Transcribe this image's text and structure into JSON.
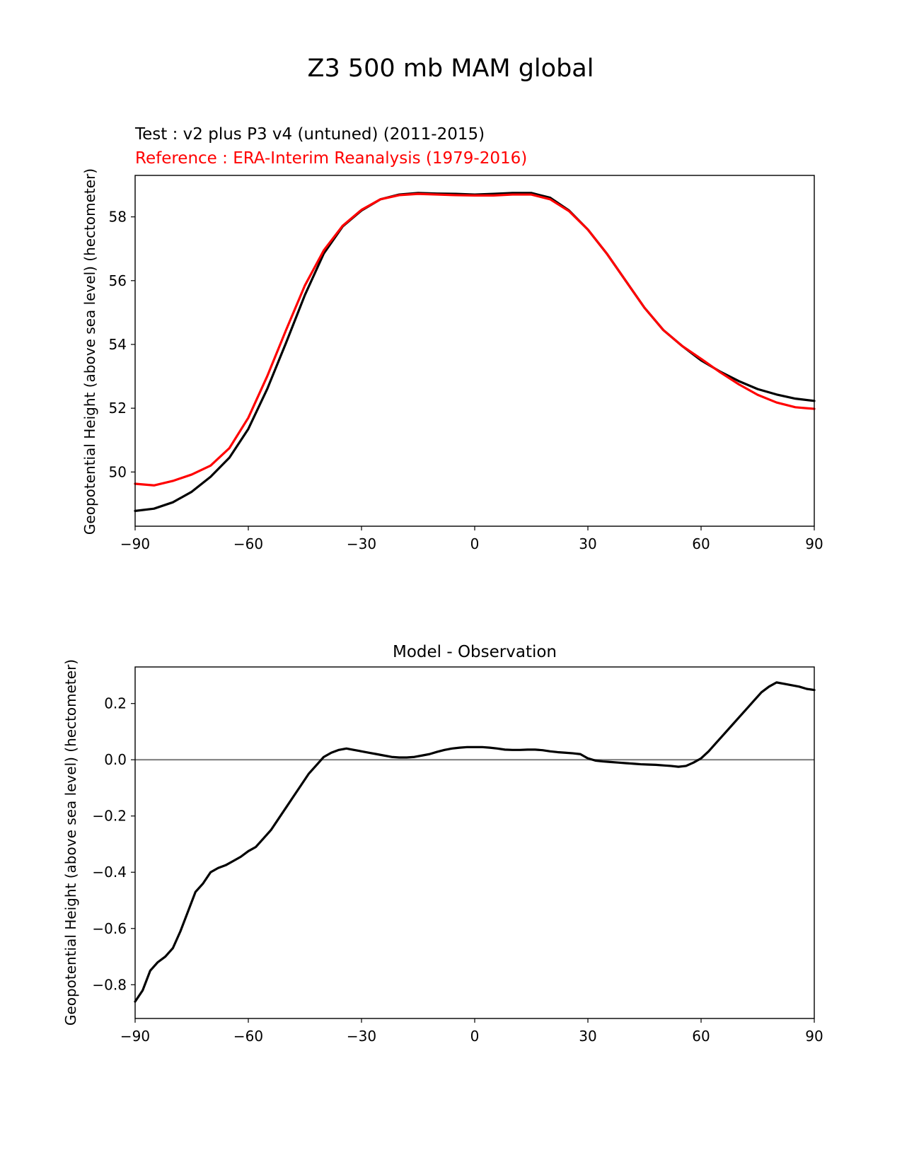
{
  "figure": {
    "suptitle": "Z3 500 mb MAM global"
  },
  "chart_data": [
    {
      "type": "line",
      "test_label": "Test : v2 plus P3 v4 (untuned) (2011-2015)",
      "reference_label": "Reference : ERA-Interim Reanalysis (1979-2016)",
      "xlabel": "",
      "ylabel": "Geopotential Height (above sea level) (hectometer)",
      "xlim": [
        -90,
        90
      ],
      "ylim": [
        48.3,
        59.3
      ],
      "xticks": [
        -90,
        -60,
        -30,
        0,
        30,
        60,
        90
      ],
      "xtick_labels": [
        "−90",
        "−60",
        "−30",
        "0",
        "30",
        "60",
        "90"
      ],
      "yticks": [
        50,
        52,
        54,
        56,
        58
      ],
      "ytick_labels": [
        "50",
        "52",
        "54",
        "56",
        "58"
      ],
      "x": [
        -90,
        -85,
        -80,
        -75,
        -70,
        -65,
        -60,
        -55,
        -50,
        -45,
        -40,
        -35,
        -30,
        -25,
        -20,
        -15,
        -10,
        -5,
        0,
        5,
        10,
        15,
        20,
        25,
        30,
        35,
        40,
        45,
        50,
        55,
        60,
        65,
        70,
        75,
        80,
        85,
        90
      ],
      "series": [
        {
          "name": "Test",
          "color": "#000000",
          "values": [
            48.78,
            48.85,
            49.05,
            49.38,
            49.85,
            50.45,
            51.35,
            52.6,
            54.05,
            55.55,
            56.85,
            57.7,
            58.2,
            58.55,
            58.7,
            58.75,
            58.73,
            58.72,
            58.7,
            58.72,
            58.75,
            58.75,
            58.6,
            58.2,
            57.6,
            56.85,
            56.0,
            55.15,
            54.45,
            53.95,
            53.5,
            53.15,
            52.85,
            52.6,
            52.43,
            52.3,
            52.23
          ]
        },
        {
          "name": "Reference",
          "color": "#ff0000",
          "values": [
            49.63,
            49.58,
            49.72,
            49.92,
            50.2,
            50.75,
            51.7,
            53.0,
            54.45,
            55.85,
            56.95,
            57.72,
            58.22,
            58.55,
            58.68,
            58.72,
            58.7,
            58.68,
            58.67,
            58.67,
            58.7,
            58.7,
            58.55,
            58.18,
            57.6,
            56.85,
            56.0,
            55.15,
            54.45,
            53.95,
            53.55,
            53.13,
            52.75,
            52.42,
            52.18,
            52.03,
            51.98
          ]
        }
      ]
    },
    {
      "type": "line",
      "title": "Model - Observation",
      "xlabel": "",
      "ylabel": "Geopotential Height (above sea level) (hectometer)",
      "xlim": [
        -90,
        90
      ],
      "ylim": [
        -0.92,
        0.33
      ],
      "xticks": [
        -90,
        -60,
        -30,
        0,
        30,
        60,
        90
      ],
      "xtick_labels": [
        "−90",
        "−60",
        "−30",
        "0",
        "30",
        "60",
        "90"
      ],
      "yticks": [
        -0.8,
        -0.6,
        -0.4,
        -0.2,
        0.0,
        0.2
      ],
      "ytick_labels": [
        "−0.8",
        "−0.6",
        "−0.4",
        "−0.2",
        "0.0",
        "0.2"
      ],
      "zero_line_color": "#808080",
      "x": [
        -90,
        -88,
        -86,
        -84,
        -82,
        -80,
        -78,
        -76,
        -74,
        -72,
        -70,
        -68,
        -66,
        -64,
        -62,
        -60,
        -58,
        -56,
        -54,
        -52,
        -50,
        -48,
        -46,
        -44,
        -42,
        -40,
        -38,
        -36,
        -34,
        -32,
        -30,
        -28,
        -26,
        -24,
        -22,
        -20,
        -18,
        -16,
        -14,
        -12,
        -10,
        -8,
        -6,
        -4,
        -2,
        0,
        2,
        4,
        6,
        8,
        10,
        12,
        14,
        16,
        18,
        20,
        22,
        24,
        26,
        28,
        30,
        32,
        34,
        36,
        38,
        40,
        42,
        44,
        46,
        48,
        50,
        52,
        54,
        56,
        58,
        60,
        62,
        64,
        66,
        68,
        70,
        72,
        74,
        76,
        78,
        80,
        82,
        84,
        86,
        88,
        90
      ],
      "series": [
        {
          "name": "Model - Observation",
          "color": "#000000",
          "values": [
            -0.86,
            -0.82,
            -0.75,
            -0.72,
            -0.7,
            -0.67,
            -0.61,
            -0.54,
            -0.47,
            -0.44,
            -0.4,
            -0.385,
            -0.375,
            -0.36,
            -0.345,
            -0.325,
            -0.31,
            -0.28,
            -0.25,
            -0.21,
            -0.17,
            -0.13,
            -0.09,
            -0.05,
            -0.02,
            0.01,
            0.025,
            0.035,
            0.04,
            0.035,
            0.03,
            0.025,
            0.02,
            0.015,
            0.01,
            0.008,
            0.008,
            0.01,
            0.015,
            0.02,
            0.028,
            0.035,
            0.04,
            0.043,
            0.045,
            0.045,
            0.045,
            0.043,
            0.04,
            0.036,
            0.035,
            0.035,
            0.036,
            0.036,
            0.034,
            0.03,
            0.027,
            0.025,
            0.023,
            0.02,
            0.005,
            -0.003,
            -0.006,
            -0.008,
            -0.01,
            -0.012,
            -0.014,
            -0.016,
            -0.017,
            -0.018,
            -0.02,
            -0.022,
            -0.025,
            -0.022,
            -0.01,
            0.005,
            0.03,
            0.06,
            0.09,
            0.12,
            0.15,
            0.18,
            0.21,
            0.24,
            0.26,
            0.275,
            0.27,
            0.265,
            0.26,
            0.252,
            0.248
          ]
        }
      ]
    }
  ]
}
